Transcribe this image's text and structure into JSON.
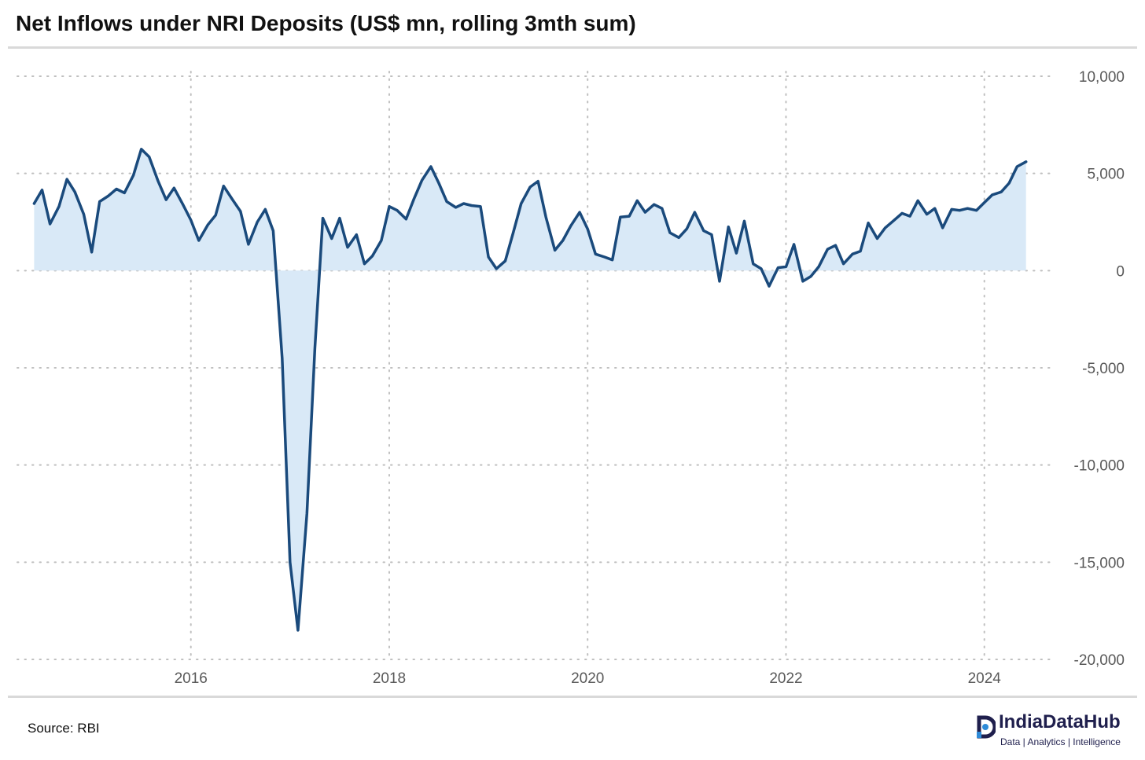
{
  "header": {
    "title": "Net Inflows under NRI Deposits (US$ mn, rolling 3mth sum)"
  },
  "footer": {
    "source": "Source: RBI",
    "brand_name": "IndiaDataHub",
    "brand_tagline": "Data | Analytics | Intelligence"
  },
  "colors": {
    "line": "#1a4a7c",
    "fill": "#d9e9f7",
    "grid": "#bfbfbf",
    "rule": "#d9d9d9",
    "brand": "#1f1f4d"
  },
  "chart_data": {
    "type": "area",
    "title": "Net Inflows under NRI Deposits (US$ mn, rolling 3mth sum)",
    "xlabel": "",
    "ylabel": "",
    "ylim": [
      -20000,
      10000
    ],
    "xlim": [
      2014.25,
      2024.7
    ],
    "grid": true,
    "y_axis_side": "right",
    "yticks": [
      10000,
      5000,
      0,
      -5000,
      -10000,
      -15000,
      -20000
    ],
    "ytick_labels": [
      "10,000",
      "5,000",
      "0",
      "-5,000",
      "-10,000",
      "-15,000",
      "-20,000"
    ],
    "xticks": [
      2016,
      2018,
      2020,
      2022,
      2024
    ],
    "xtick_labels": [
      "2016",
      "2018",
      "2020",
      "2022",
      "2024"
    ],
    "series": [
      {
        "values": [
          [
            2014.42,
            3450
          ],
          [
            2014.5,
            4150
          ],
          [
            2014.58,
            2400
          ],
          [
            2014.67,
            3300
          ],
          [
            2014.75,
            4700
          ],
          [
            2014.83,
            4050
          ],
          [
            2014.92,
            2900
          ],
          [
            2015.0,
            950
          ],
          [
            2015.08,
            3550
          ],
          [
            2015.17,
            3850
          ],
          [
            2015.25,
            4200
          ],
          [
            2015.33,
            4000
          ],
          [
            2015.42,
            4900
          ],
          [
            2015.5,
            6250
          ],
          [
            2015.58,
            5850
          ],
          [
            2015.67,
            4600
          ],
          [
            2015.75,
            3650
          ],
          [
            2015.83,
            4250
          ],
          [
            2015.92,
            3400
          ],
          [
            2016.0,
            2600
          ],
          [
            2016.08,
            1550
          ],
          [
            2016.17,
            2350
          ],
          [
            2016.25,
            2850
          ],
          [
            2016.33,
            4350
          ],
          [
            2016.42,
            3650
          ],
          [
            2016.5,
            3050
          ],
          [
            2016.58,
            1350
          ],
          [
            2016.67,
            2500
          ],
          [
            2016.75,
            3150
          ],
          [
            2016.83,
            2050
          ],
          [
            2016.92,
            -4500
          ],
          [
            2017.0,
            -15000
          ],
          [
            2017.08,
            -18500
          ],
          [
            2017.17,
            -12500
          ],
          [
            2017.25,
            -4000
          ],
          [
            2017.33,
            2700
          ],
          [
            2017.42,
            1650
          ],
          [
            2017.5,
            2700
          ],
          [
            2017.58,
            1200
          ],
          [
            2017.67,
            1850
          ],
          [
            2017.75,
            350
          ],
          [
            2017.83,
            750
          ],
          [
            2017.92,
            1550
          ],
          [
            2018.0,
            3300
          ],
          [
            2018.08,
            3100
          ],
          [
            2018.17,
            2650
          ],
          [
            2018.25,
            3700
          ],
          [
            2018.33,
            4650
          ],
          [
            2018.42,
            5350
          ],
          [
            2018.5,
            4500
          ],
          [
            2018.58,
            3550
          ],
          [
            2018.67,
            3250
          ],
          [
            2018.75,
            3450
          ],
          [
            2018.83,
            3350
          ],
          [
            2018.92,
            3300
          ],
          [
            2019.0,
            700
          ],
          [
            2019.08,
            100
          ],
          [
            2019.17,
            500
          ],
          [
            2019.25,
            1950
          ],
          [
            2019.33,
            3450
          ],
          [
            2019.42,
            4300
          ],
          [
            2019.5,
            4600
          ],
          [
            2019.58,
            2750
          ],
          [
            2019.67,
            1050
          ],
          [
            2019.75,
            1550
          ],
          [
            2019.83,
            2300
          ],
          [
            2019.92,
            3000
          ],
          [
            2020.0,
            2150
          ],
          [
            2020.08,
            850
          ],
          [
            2020.17,
            700
          ],
          [
            2020.25,
            550
          ],
          [
            2020.33,
            2750
          ],
          [
            2020.42,
            2800
          ],
          [
            2020.5,
            3600
          ],
          [
            2020.58,
            3000
          ],
          [
            2020.67,
            3400
          ],
          [
            2020.75,
            3200
          ],
          [
            2020.83,
            1950
          ],
          [
            2020.92,
            1700
          ],
          [
            2021.0,
            2150
          ],
          [
            2021.08,
            3000
          ],
          [
            2021.17,
            2050
          ],
          [
            2021.25,
            1850
          ],
          [
            2021.33,
            -550
          ],
          [
            2021.42,
            2250
          ],
          [
            2021.5,
            900
          ],
          [
            2021.58,
            2550
          ],
          [
            2021.67,
            350
          ],
          [
            2021.75,
            100
          ],
          [
            2021.83,
            -800
          ],
          [
            2021.92,
            150
          ],
          [
            2022.0,
            200
          ],
          [
            2022.08,
            1350
          ],
          [
            2022.17,
            -550
          ],
          [
            2022.25,
            -300
          ],
          [
            2022.33,
            200
          ],
          [
            2022.42,
            1100
          ],
          [
            2022.5,
            1300
          ],
          [
            2022.58,
            350
          ],
          [
            2022.67,
            850
          ],
          [
            2022.75,
            1000
          ],
          [
            2022.83,
            2450
          ],
          [
            2022.92,
            1650
          ],
          [
            2023.0,
            2200
          ],
          [
            2023.08,
            2550
          ],
          [
            2023.17,
            2950
          ],
          [
            2023.25,
            2800
          ],
          [
            2023.33,
            3600
          ],
          [
            2023.42,
            2900
          ],
          [
            2023.5,
            3200
          ],
          [
            2023.58,
            2200
          ],
          [
            2023.67,
            3150
          ],
          [
            2023.75,
            3100
          ],
          [
            2023.83,
            3200
          ],
          [
            2023.92,
            3100
          ],
          [
            2024.0,
            3500
          ],
          [
            2024.08,
            3900
          ],
          [
            2024.17,
            4050
          ],
          [
            2024.25,
            4500
          ],
          [
            2024.33,
            5350
          ],
          [
            2024.42,
            5600
          ]
        ]
      }
    ]
  }
}
